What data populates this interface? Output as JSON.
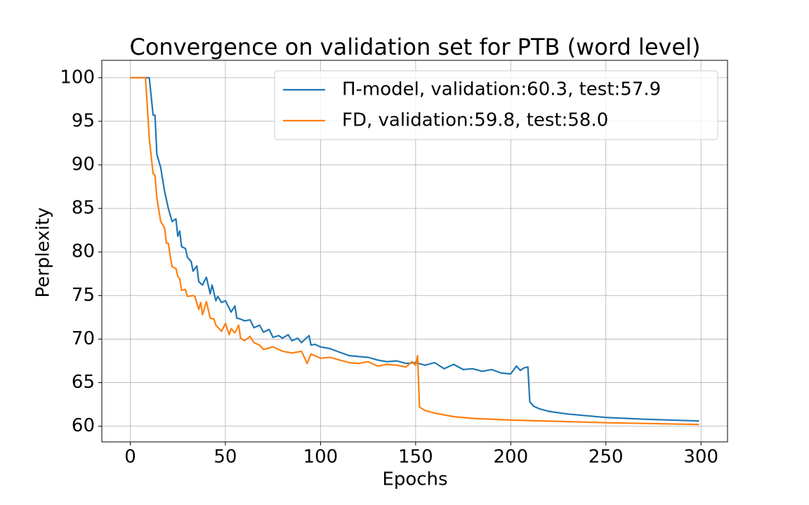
{
  "chart_data": {
    "type": "line",
    "title": "Convergence on validation set for PTB (word level)",
    "xlabel": "Epochs",
    "ylabel": "Perplexity",
    "xlim": [
      -14.95,
      313.95
    ],
    "xticks": [
      0,
      50,
      100,
      150,
      200,
      250,
      300
    ],
    "ylim": [
      58.2,
      102.0
    ],
    "yticks": [
      60,
      65,
      70,
      75,
      80,
      85,
      90,
      95,
      100
    ],
    "grid": true,
    "legend": "upper right",
    "series": [
      {
        "name": "Π-model, validation:60.3, test:57.9",
        "color": "#1f77b4",
        "x": [
          0,
          10,
          12,
          13,
          14,
          16,
          18,
          20,
          22,
          24,
          25,
          26,
          27,
          29,
          30,
          32,
          33,
          35,
          36,
          38,
          40,
          42,
          43,
          45,
          46,
          48,
          50,
          53,
          55,
          56,
          58,
          60,
          63,
          65,
          68,
          70,
          73,
          75,
          78,
          80,
          83,
          85,
          88,
          90,
          94,
          95,
          97,
          100,
          105,
          110,
          115,
          120,
          125,
          130,
          135,
          140,
          145,
          150,
          155,
          160,
          165,
          170,
          175,
          180,
          185,
          190,
          195,
          200,
          203,
          205,
          207,
          209,
          210,
          212,
          215,
          220,
          230,
          250,
          270,
          299
        ],
        "values": [
          100,
          100,
          95.7,
          95.7,
          91.2,
          89.7,
          87,
          85,
          83.5,
          83.8,
          81.8,
          82.4,
          80.6,
          80.4,
          79.4,
          78.9,
          77.8,
          78.4,
          76.6,
          76.2,
          77.1,
          75.2,
          76.2,
          74.4,
          74.9,
          74.2,
          74.4,
          73.1,
          73.8,
          72.4,
          72.3,
          72.1,
          72.2,
          71.3,
          71.6,
          70.8,
          71.1,
          70.2,
          70.4,
          70.1,
          70.5,
          69.8,
          70.1,
          69.6,
          70.4,
          69.3,
          69.4,
          69.1,
          68.9,
          68.5,
          68.1,
          68,
          67.9,
          67.6,
          67.4,
          67.5,
          67.2,
          67.3,
          67.0,
          67.3,
          66.6,
          67.1,
          66.5,
          66.6,
          66.3,
          66.5,
          66.1,
          66.0,
          66.9,
          66.4,
          66.7,
          66.8,
          62.8,
          62.3,
          62.0,
          61.7,
          61.4,
          61.0,
          60.8,
          60.6
        ]
      },
      {
        "name": "FD, validation:59.8, test:58.0",
        "color": "#ff7f0e",
        "x": [
          0,
          8,
          10,
          12,
          13,
          14,
          16,
          18,
          19,
          20,
          21,
          22,
          24,
          25,
          26,
          27,
          29,
          30,
          33,
          34,
          36,
          37,
          38,
          40,
          42,
          44,
          45,
          48,
          50,
          52,
          53,
          55,
          57,
          58,
          60,
          63,
          65,
          68,
          70,
          75,
          80,
          85,
          90,
          93,
          95,
          100,
          105,
          110,
          115,
          120,
          125,
          130,
          135,
          140,
          145,
          148,
          150,
          151,
          152,
          155,
          160,
          165,
          170,
          180,
          200,
          250,
          299
        ],
        "values": [
          100,
          100,
          93,
          89,
          88.8,
          86.2,
          83.5,
          82.8,
          81,
          81,
          79.5,
          78.3,
          78.1,
          77.2,
          76.9,
          75.6,
          75.7,
          74.9,
          75,
          74.9,
          73.4,
          74.2,
          72.8,
          74.3,
          72.4,
          72.3,
          71.6,
          70.9,
          71.8,
          70.5,
          71.2,
          70.7,
          71.6,
          70.1,
          69.8,
          70.3,
          69.6,
          69.3,
          68.8,
          69.1,
          68.6,
          68.4,
          68.6,
          67.2,
          68.3,
          67.8,
          67.9,
          67.6,
          67.3,
          67.2,
          67.4,
          66.9,
          67.1,
          67.0,
          66.8,
          67.4,
          67.0,
          68.1,
          62.2,
          61.8,
          61.5,
          61.3,
          61.1,
          60.9,
          60.7,
          60.4,
          60.2
        ]
      }
    ]
  }
}
